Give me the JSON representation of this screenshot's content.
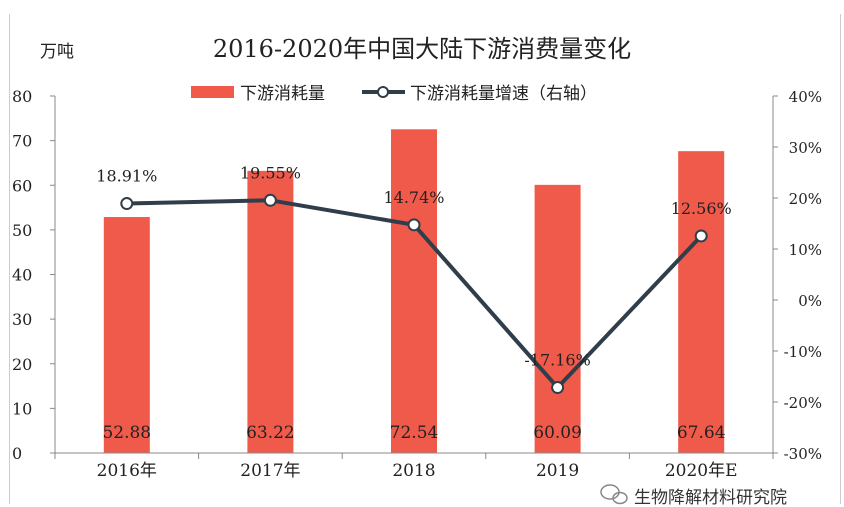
{
  "chart_data": {
    "type": "bar+line",
    "title": "2016-2020年中国大陆下游消费量变化",
    "ylabel": "万吨",
    "categories": [
      "2016年",
      "2017年",
      "2018",
      "2019",
      "2020年E"
    ],
    "ylim": [
      0,
      80
    ],
    "yticks": [
      0,
      10,
      20,
      30,
      40,
      50,
      60,
      70,
      80
    ],
    "y2lim": [
      -30,
      40
    ],
    "y2ticks": [
      "-30%",
      "-20%",
      "-10%",
      "0%",
      "10%",
      "20%",
      "30%",
      "40%"
    ],
    "y2tick_values": [
      -30,
      -20,
      -10,
      0,
      10,
      20,
      30,
      40
    ],
    "legend_position": "top",
    "grid": false,
    "series": [
      {
        "name": "下游消耗量",
        "type": "bar",
        "axis": "left",
        "color": "#f05a4a",
        "values": [
          52.88,
          63.22,
          72.54,
          60.09,
          67.64
        ],
        "labels": [
          "52.88",
          "63.22",
          "72.54",
          "60.09",
          "67.64"
        ]
      },
      {
        "name": "下游消耗量增速（右轴）",
        "type": "line",
        "axis": "right",
        "color": "#2f3e4a",
        "values": [
          18.91,
          19.55,
          14.74,
          -17.16,
          12.56
        ],
        "labels": [
          "18.91%",
          "19.55%",
          "14.74%",
          "-17.16%",
          "12.56%"
        ]
      }
    ]
  },
  "watermark": "生物降解材料研究院"
}
